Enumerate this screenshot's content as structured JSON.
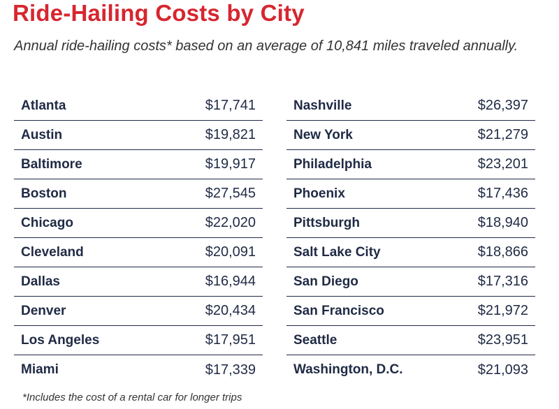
{
  "title": "Ride-Hailing Costs by City",
  "subtitle": "Annual ride-hailing costs* based on an average of 10,841 miles traveled annually.",
  "footnote": "*Includes the cost of a rental car for longer trips",
  "left_table": [
    {
      "city": "Atlanta",
      "cost": "$17,741"
    },
    {
      "city": "Austin",
      "cost": "$19,821"
    },
    {
      "city": "Baltimore",
      "cost": "$19,917"
    },
    {
      "city": "Boston",
      "cost": "$27,545"
    },
    {
      "city": "Chicago",
      "cost": "$22,020"
    },
    {
      "city": "Cleveland",
      "cost": "$20,091"
    },
    {
      "city": "Dallas",
      "cost": "$16,944"
    },
    {
      "city": "Denver",
      "cost": "$20,434"
    },
    {
      "city": "Los Angeles",
      "cost": "$17,951"
    },
    {
      "city": "Miami",
      "cost": "$17,339"
    }
  ],
  "right_table": [
    {
      "city": "Nashville",
      "cost": "$26,397"
    },
    {
      "city": "New York",
      "cost": "$21,279"
    },
    {
      "city": "Philadelphia",
      "cost": "$23,201"
    },
    {
      "city": "Phoenix",
      "cost": "$17,436"
    },
    {
      "city": "Pittsburgh",
      "cost": "$18,940"
    },
    {
      "city": "Salt Lake City",
      "cost": "$18,866"
    },
    {
      "city": "San Diego",
      "cost": "$17,316"
    },
    {
      "city": "San Francisco",
      "cost": "$21,972"
    },
    {
      "city": "Seattle",
      "cost": "$23,951"
    },
    {
      "city": "Washington, D.C.",
      "cost": "$21,093"
    }
  ],
  "colors": {
    "title": "#d7262f",
    "text": "#1f2a44",
    "rule": "#1f2a44"
  }
}
